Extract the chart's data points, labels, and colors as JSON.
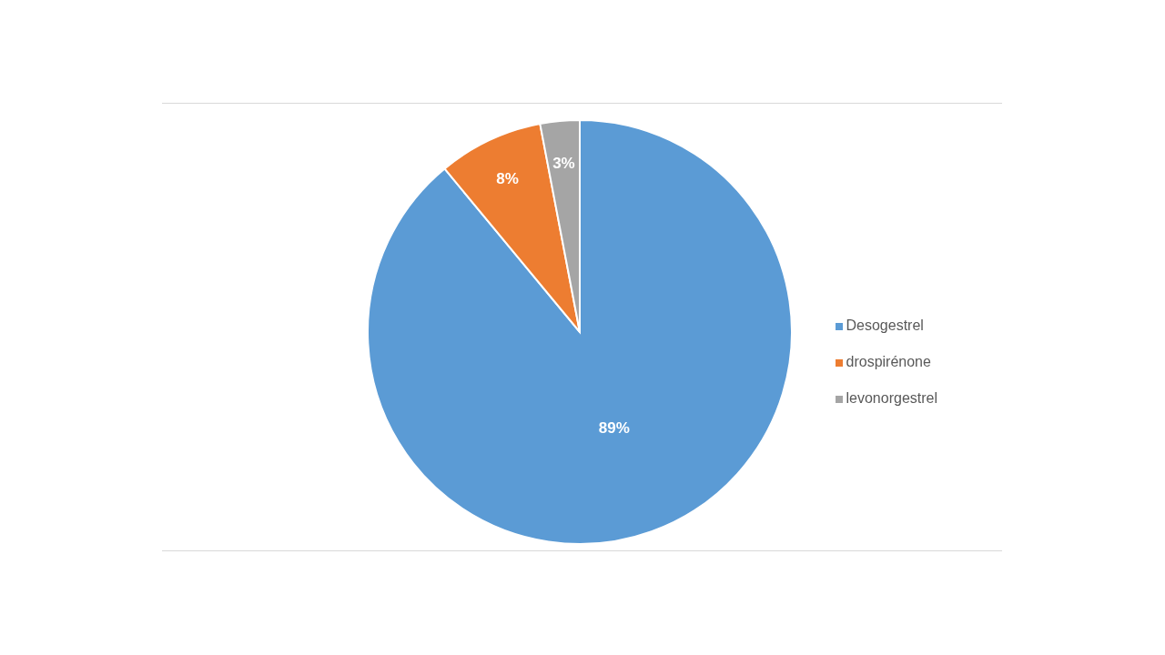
{
  "chart_data": {
    "type": "pie",
    "categories": [
      "Desogestrel",
      "drospirénone",
      "levonorgestrel"
    ],
    "values": [
      89,
      8,
      3
    ],
    "colors": [
      "#5b9bd5",
      "#ed7d31",
      "#a5a5a5"
    ],
    "value_labels": [
      "89%",
      "8%",
      "3%"
    ],
    "legend": "right"
  }
}
